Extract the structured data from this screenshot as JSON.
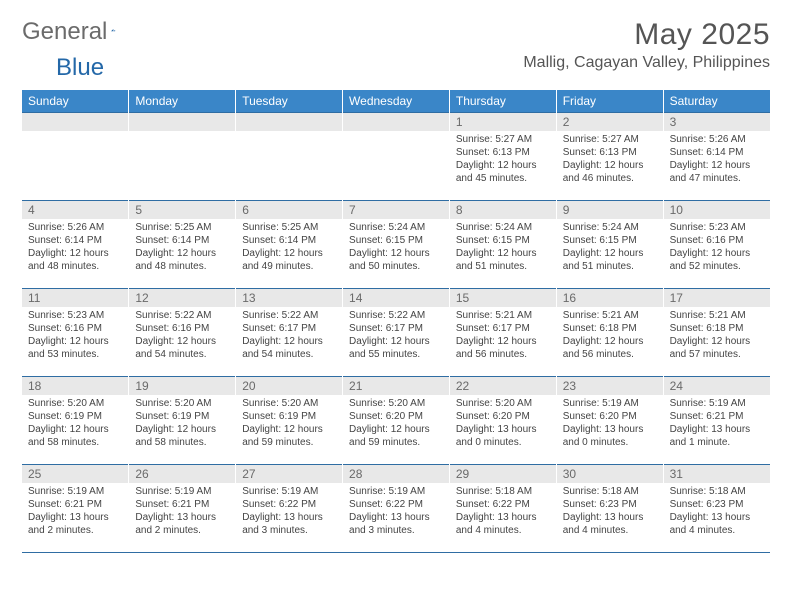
{
  "logo": {
    "word1": "General",
    "word2": "Blue"
  },
  "title": "May 2025",
  "location": "Mallig, Cagayan Valley, Philippines",
  "header_bg": "#3a86c8",
  "header_fg": "#ffffff",
  "rule_color": "#2f6da3",
  "daynum_bg": "#e8e8e8",
  "daynum_fg": "#6a6a6a",
  "text_color": "#444444",
  "dow": [
    "Sunday",
    "Monday",
    "Tuesday",
    "Wednesday",
    "Thursday",
    "Friday",
    "Saturday"
  ],
  "weeks": [
    [
      null,
      null,
      null,
      null,
      {
        "n": "1",
        "sr": "Sunrise: 5:27 AM",
        "ss": "Sunset: 6:13 PM",
        "d1": "Daylight: 12 hours",
        "d2": "and 45 minutes."
      },
      {
        "n": "2",
        "sr": "Sunrise: 5:27 AM",
        "ss": "Sunset: 6:13 PM",
        "d1": "Daylight: 12 hours",
        "d2": "and 46 minutes."
      },
      {
        "n": "3",
        "sr": "Sunrise: 5:26 AM",
        "ss": "Sunset: 6:14 PM",
        "d1": "Daylight: 12 hours",
        "d2": "and 47 minutes."
      }
    ],
    [
      {
        "n": "4",
        "sr": "Sunrise: 5:26 AM",
        "ss": "Sunset: 6:14 PM",
        "d1": "Daylight: 12 hours",
        "d2": "and 48 minutes."
      },
      {
        "n": "5",
        "sr": "Sunrise: 5:25 AM",
        "ss": "Sunset: 6:14 PM",
        "d1": "Daylight: 12 hours",
        "d2": "and 48 minutes."
      },
      {
        "n": "6",
        "sr": "Sunrise: 5:25 AM",
        "ss": "Sunset: 6:14 PM",
        "d1": "Daylight: 12 hours",
        "d2": "and 49 minutes."
      },
      {
        "n": "7",
        "sr": "Sunrise: 5:24 AM",
        "ss": "Sunset: 6:15 PM",
        "d1": "Daylight: 12 hours",
        "d2": "and 50 minutes."
      },
      {
        "n": "8",
        "sr": "Sunrise: 5:24 AM",
        "ss": "Sunset: 6:15 PM",
        "d1": "Daylight: 12 hours",
        "d2": "and 51 minutes."
      },
      {
        "n": "9",
        "sr": "Sunrise: 5:24 AM",
        "ss": "Sunset: 6:15 PM",
        "d1": "Daylight: 12 hours",
        "d2": "and 51 minutes."
      },
      {
        "n": "10",
        "sr": "Sunrise: 5:23 AM",
        "ss": "Sunset: 6:16 PM",
        "d1": "Daylight: 12 hours",
        "d2": "and 52 minutes."
      }
    ],
    [
      {
        "n": "11",
        "sr": "Sunrise: 5:23 AM",
        "ss": "Sunset: 6:16 PM",
        "d1": "Daylight: 12 hours",
        "d2": "and 53 minutes."
      },
      {
        "n": "12",
        "sr": "Sunrise: 5:22 AM",
        "ss": "Sunset: 6:16 PM",
        "d1": "Daylight: 12 hours",
        "d2": "and 54 minutes."
      },
      {
        "n": "13",
        "sr": "Sunrise: 5:22 AM",
        "ss": "Sunset: 6:17 PM",
        "d1": "Daylight: 12 hours",
        "d2": "and 54 minutes."
      },
      {
        "n": "14",
        "sr": "Sunrise: 5:22 AM",
        "ss": "Sunset: 6:17 PM",
        "d1": "Daylight: 12 hours",
        "d2": "and 55 minutes."
      },
      {
        "n": "15",
        "sr": "Sunrise: 5:21 AM",
        "ss": "Sunset: 6:17 PM",
        "d1": "Daylight: 12 hours",
        "d2": "and 56 minutes."
      },
      {
        "n": "16",
        "sr": "Sunrise: 5:21 AM",
        "ss": "Sunset: 6:18 PM",
        "d1": "Daylight: 12 hours",
        "d2": "and 56 minutes."
      },
      {
        "n": "17",
        "sr": "Sunrise: 5:21 AM",
        "ss": "Sunset: 6:18 PM",
        "d1": "Daylight: 12 hours",
        "d2": "and 57 minutes."
      }
    ],
    [
      {
        "n": "18",
        "sr": "Sunrise: 5:20 AM",
        "ss": "Sunset: 6:19 PM",
        "d1": "Daylight: 12 hours",
        "d2": "and 58 minutes."
      },
      {
        "n": "19",
        "sr": "Sunrise: 5:20 AM",
        "ss": "Sunset: 6:19 PM",
        "d1": "Daylight: 12 hours",
        "d2": "and 58 minutes."
      },
      {
        "n": "20",
        "sr": "Sunrise: 5:20 AM",
        "ss": "Sunset: 6:19 PM",
        "d1": "Daylight: 12 hours",
        "d2": "and 59 minutes."
      },
      {
        "n": "21",
        "sr": "Sunrise: 5:20 AM",
        "ss": "Sunset: 6:20 PM",
        "d1": "Daylight: 12 hours",
        "d2": "and 59 minutes."
      },
      {
        "n": "22",
        "sr": "Sunrise: 5:20 AM",
        "ss": "Sunset: 6:20 PM",
        "d1": "Daylight: 13 hours",
        "d2": "and 0 minutes."
      },
      {
        "n": "23",
        "sr": "Sunrise: 5:19 AM",
        "ss": "Sunset: 6:20 PM",
        "d1": "Daylight: 13 hours",
        "d2": "and 0 minutes."
      },
      {
        "n": "24",
        "sr": "Sunrise: 5:19 AM",
        "ss": "Sunset: 6:21 PM",
        "d1": "Daylight: 13 hours",
        "d2": "and 1 minute."
      }
    ],
    [
      {
        "n": "25",
        "sr": "Sunrise: 5:19 AM",
        "ss": "Sunset: 6:21 PM",
        "d1": "Daylight: 13 hours",
        "d2": "and 2 minutes."
      },
      {
        "n": "26",
        "sr": "Sunrise: 5:19 AM",
        "ss": "Sunset: 6:21 PM",
        "d1": "Daylight: 13 hours",
        "d2": "and 2 minutes."
      },
      {
        "n": "27",
        "sr": "Sunrise: 5:19 AM",
        "ss": "Sunset: 6:22 PM",
        "d1": "Daylight: 13 hours",
        "d2": "and 3 minutes."
      },
      {
        "n": "28",
        "sr": "Sunrise: 5:19 AM",
        "ss": "Sunset: 6:22 PM",
        "d1": "Daylight: 13 hours",
        "d2": "and 3 minutes."
      },
      {
        "n": "29",
        "sr": "Sunrise: 5:18 AM",
        "ss": "Sunset: 6:22 PM",
        "d1": "Daylight: 13 hours",
        "d2": "and 4 minutes."
      },
      {
        "n": "30",
        "sr": "Sunrise: 5:18 AM",
        "ss": "Sunset: 6:23 PM",
        "d1": "Daylight: 13 hours",
        "d2": "and 4 minutes."
      },
      {
        "n": "31",
        "sr": "Sunrise: 5:18 AM",
        "ss": "Sunset: 6:23 PM",
        "d1": "Daylight: 13 hours",
        "d2": "and 4 minutes."
      }
    ]
  ]
}
